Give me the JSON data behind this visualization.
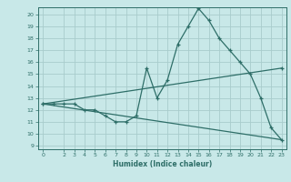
{
  "xlabel": "Humidex (Indice chaleur)",
  "ylabel": "",
  "bg_color": "#c8e8e8",
  "grid_color": "#a8cccc",
  "line_color": "#2e6e68",
  "xlim": [
    -0.5,
    23.5
  ],
  "ylim": [
    8.7,
    20.6
  ],
  "yticks": [
    9,
    10,
    11,
    12,
    13,
    14,
    15,
    16,
    17,
    18,
    19,
    20
  ],
  "xticks": [
    0,
    2,
    3,
    4,
    5,
    6,
    7,
    8,
    9,
    10,
    11,
    12,
    13,
    14,
    15,
    16,
    17,
    18,
    19,
    20,
    21,
    22,
    23
  ],
  "series1_x": [
    0,
    1,
    2,
    3,
    4,
    5,
    6,
    7,
    8,
    9,
    10,
    11,
    12,
    13,
    14,
    15,
    16,
    17,
    18,
    19,
    20,
    21,
    22,
    23
  ],
  "series1_y": [
    12.5,
    12.5,
    12.5,
    12.5,
    12.0,
    12.0,
    11.5,
    11.0,
    11.0,
    11.5,
    15.5,
    13.0,
    14.5,
    17.5,
    19.0,
    20.5,
    19.5,
    18.0,
    17.0,
    16.0,
    15.0,
    13.0,
    10.5,
    9.5
  ],
  "series2_x": [
    0,
    23
  ],
  "series2_y": [
    12.5,
    15.5
  ],
  "series3_x": [
    0,
    23
  ],
  "series3_y": [
    12.5,
    9.5
  ]
}
